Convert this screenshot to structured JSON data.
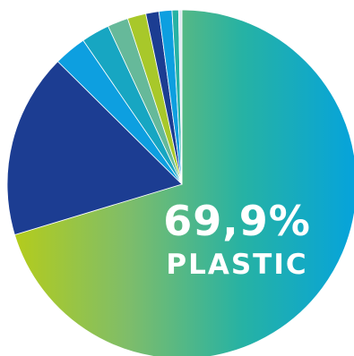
{
  "chart_data": {
    "type": "pie",
    "slices": [
      {
        "value": 69.9,
        "color": "#05a3dc",
        "gradient": [
          "#b4cc1c",
          "#7ebd6a",
          "#26b2a4",
          "#05a3dc"
        ]
      },
      {
        "value": 17.0,
        "color": "#1c3d92"
      },
      {
        "value": 3.0,
        "color": "#0d9fe0"
      },
      {
        "value": 2.6,
        "color": "#17a6c2"
      },
      {
        "value": 1.9,
        "color": "#66b99a"
      },
      {
        "value": 1.7,
        "color": "#a8c82a"
      },
      {
        "value": 1.2,
        "color": "#1c3d92"
      },
      {
        "value": 1.2,
        "color": "#0d9fe0"
      },
      {
        "value": 0.6,
        "color": "#26b2a4"
      },
      {
        "value": 0.3,
        "color": "#e0e8f0"
      }
    ],
    "highlight": {
      "percent_text": "69,9%",
      "name_text": "PLASTIC"
    }
  }
}
